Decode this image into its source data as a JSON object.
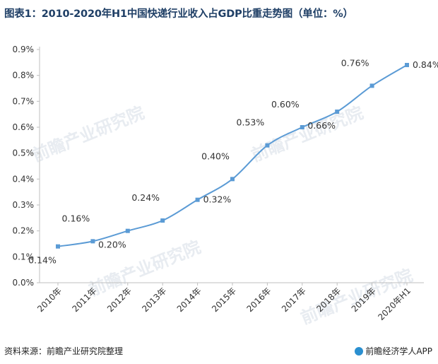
{
  "title": "图表1：2010-2020年H1中国快递行业收入占GDP比重走势图（单位：%）",
  "watermark": "前瞻产业研究院",
  "footer": {
    "source": "资料来源：前瞻产业研究院整理",
    "brand": "前瞻经济学人APP"
  },
  "colors": {
    "line": "#5b9bd5",
    "title": "#1f3f66"
  },
  "chart_data": {
    "type": "line",
    "title": "图表1：2010-2020年H1中国快递行业收入占GDP比重走势图（单位：%）",
    "categories": [
      "2010年",
      "2011年",
      "2012年",
      "2013年",
      "2014年",
      "2015年",
      "2016年",
      "2017年",
      "2018年",
      "2019年",
      "2020年H1"
    ],
    "series": [
      {
        "values": [
          0.14,
          0.16,
          0.2,
          0.24,
          0.32,
          0.4,
          0.53,
          0.6,
          0.66,
          0.76,
          0.84
        ]
      }
    ],
    "data_labels": [
      "0.14%",
      "0.16%",
      "0.20%",
      "0.24%",
      "0.32%",
      "0.40%",
      "0.53%",
      "0.60%",
      "0.66%",
      "0.76%",
      "0.84%"
    ],
    "label_position": [
      "below",
      "above",
      "below",
      "above",
      "right",
      "above",
      "above",
      "above",
      "below",
      "above",
      "right"
    ],
    "yticks": [
      "0.0%",
      "0.1%",
      "0.2%",
      "0.3%",
      "0.4%",
      "0.5%",
      "0.6%",
      "0.7%",
      "0.8%",
      "0.9%"
    ],
    "ylim": [
      0,
      0.9
    ],
    "grid": false,
    "legend": "none"
  }
}
